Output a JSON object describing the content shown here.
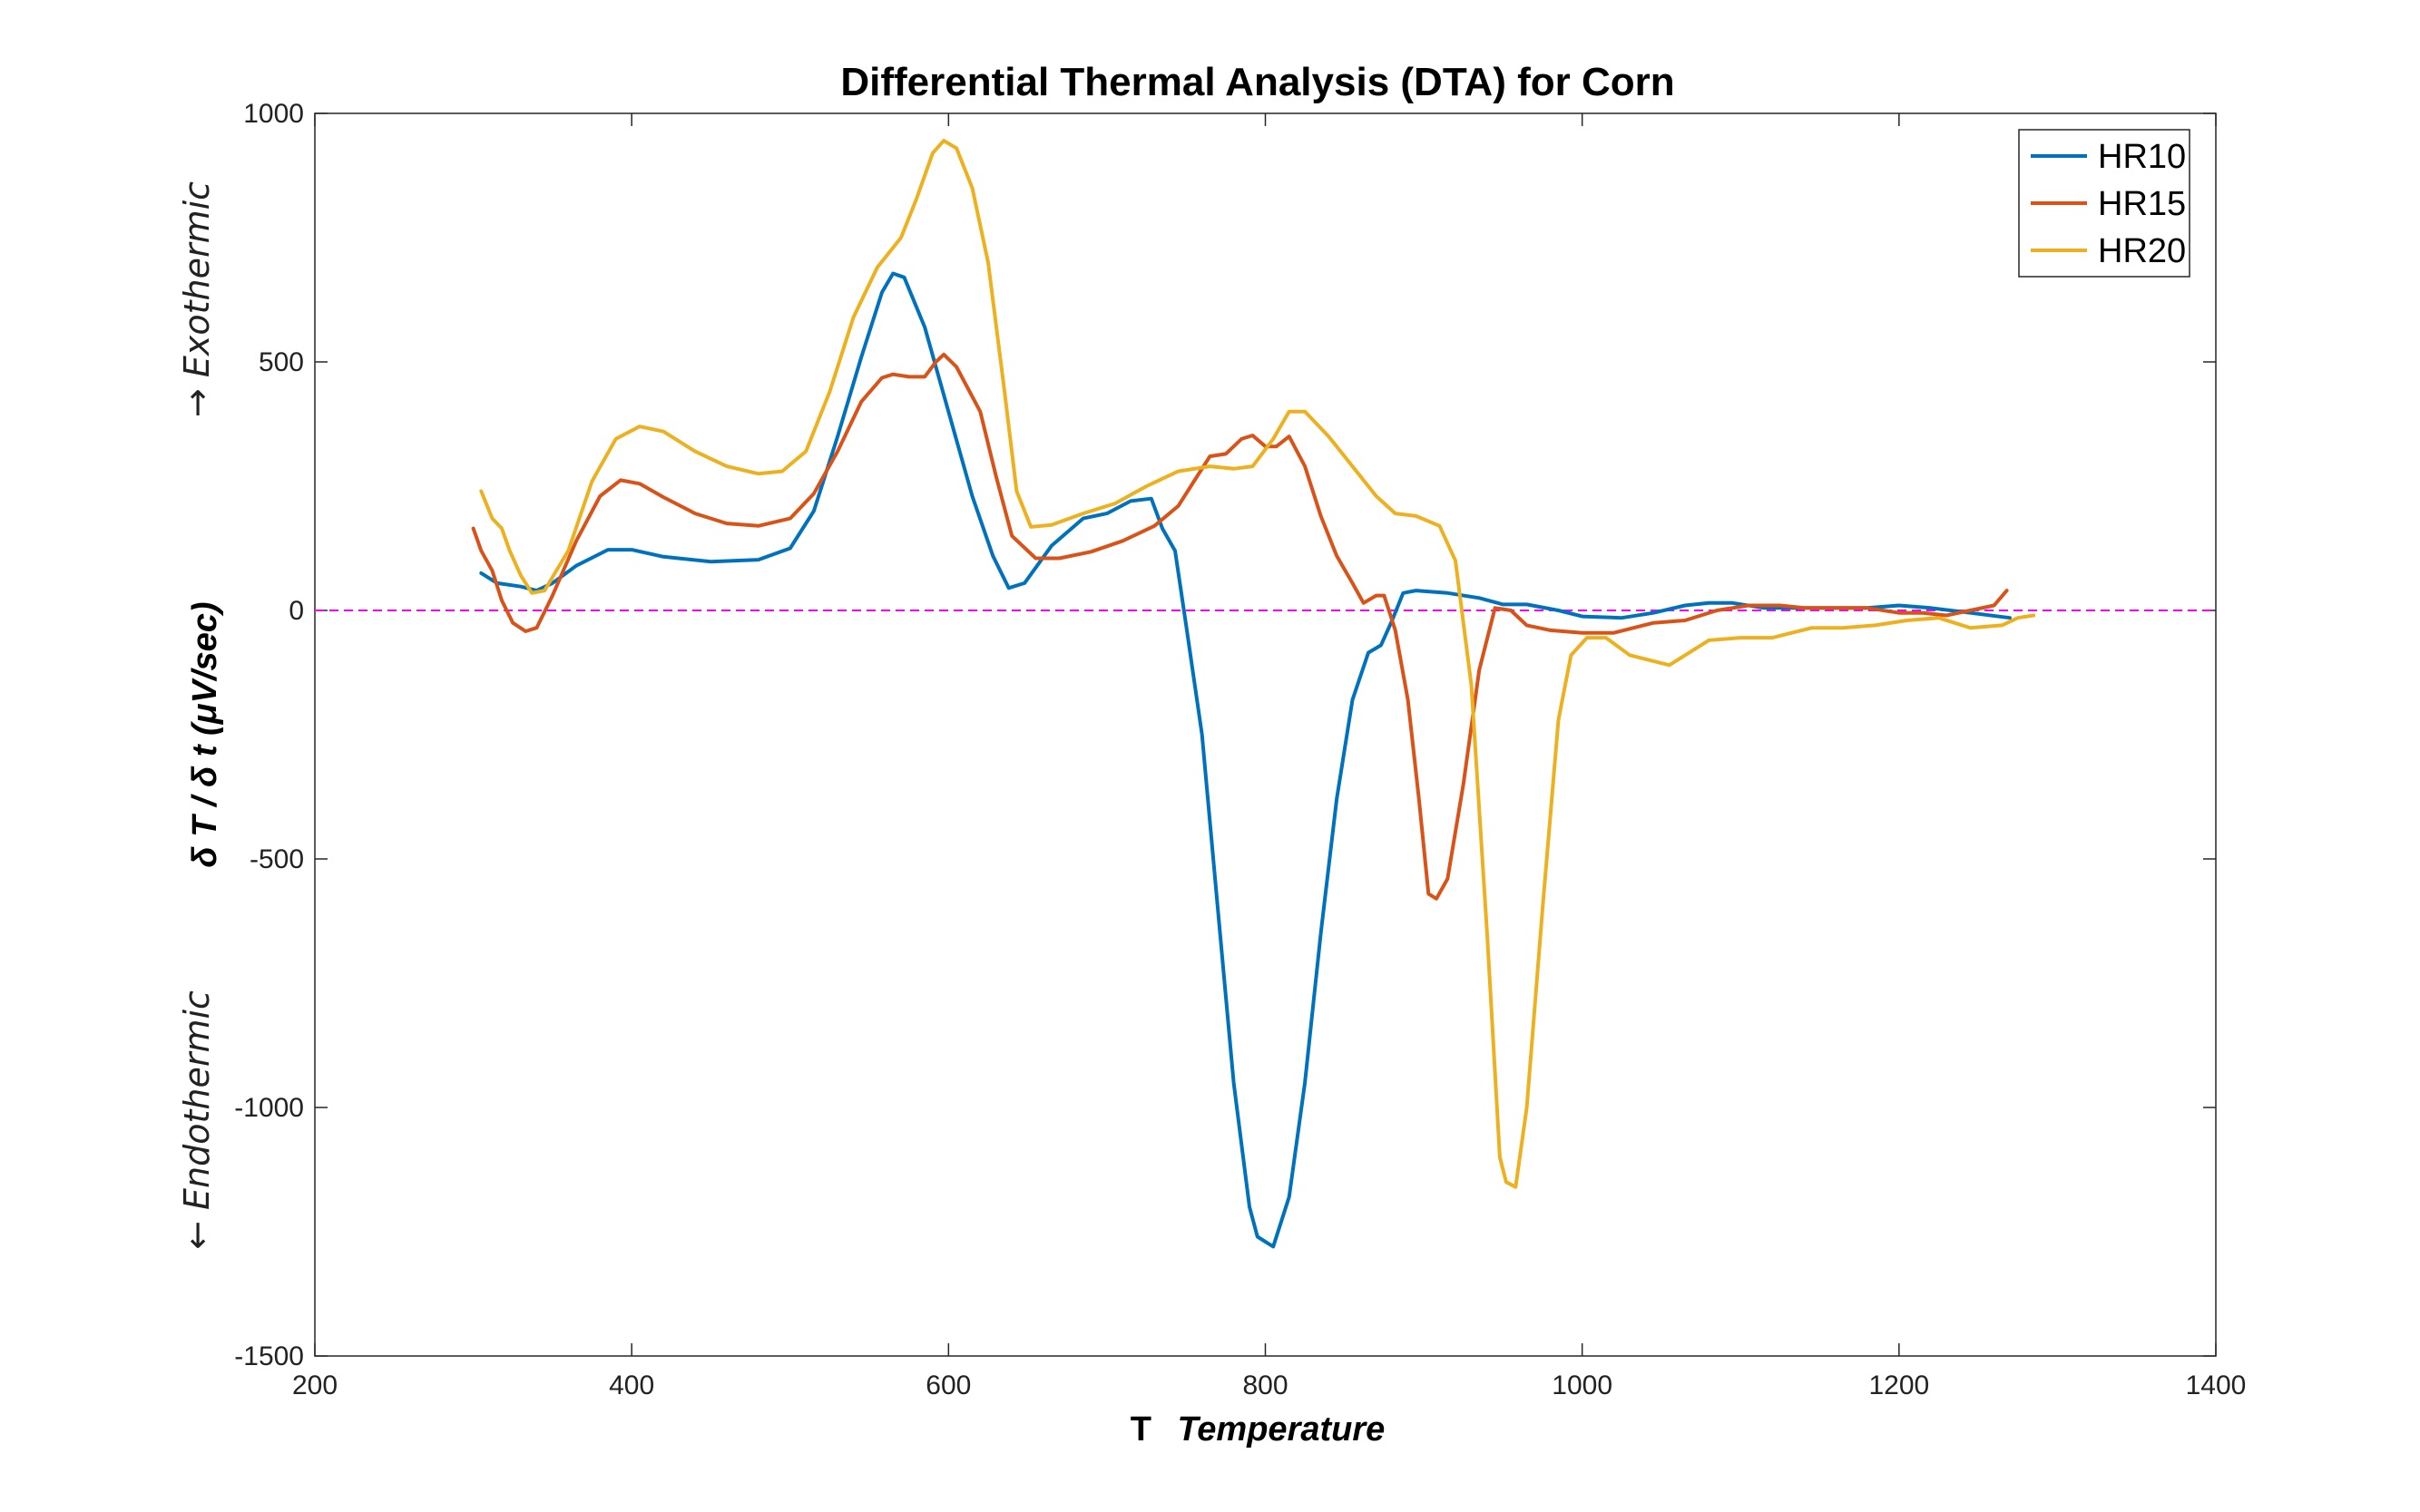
{
  "chart_data": {
    "type": "line",
    "title": "Differential Thermal Analysis (DTA) for Corn",
    "xlabel_symbol": "T",
    "xlabel": "Temperature",
    "ylabel": "δ T / δ t (μV/sec)",
    "ylabel_exo": "→ Exothermic",
    "ylabel_endo": "← Endothermic",
    "xlim": [
      200,
      1400
    ],
    "ylim": [
      -1500,
      1000
    ],
    "xticks": [
      200,
      400,
      600,
      800,
      1000,
      1200,
      1400
    ],
    "yticks": [
      1000,
      500,
      0,
      -500,
      -1000,
      -1500
    ],
    "grid": false,
    "legend_position": "top-right",
    "zero_line_color": "#ff00ff",
    "series": [
      {
        "name": "HR10",
        "color": "#0072BD",
        "points": [
          [
            305,
            75
          ],
          [
            315,
            55
          ],
          [
            330,
            48
          ],
          [
            340,
            40
          ],
          [
            350,
            55
          ],
          [
            365,
            90
          ],
          [
            385,
            122
          ],
          [
            400,
            122
          ],
          [
            420,
            108
          ],
          [
            450,
            98
          ],
          [
            480,
            102
          ],
          [
            500,
            125
          ],
          [
            515,
            200
          ],
          [
            530,
            350
          ],
          [
            545,
            510
          ],
          [
            558,
            640
          ],
          [
            565,
            678
          ],
          [
            572,
            670
          ],
          [
            585,
            570
          ],
          [
            600,
            400
          ],
          [
            615,
            230
          ],
          [
            628,
            110
          ],
          [
            638,
            45
          ],
          [
            648,
            55
          ],
          [
            665,
            130
          ],
          [
            685,
            185
          ],
          [
            700,
            195
          ],
          [
            715,
            220
          ],
          [
            728,
            225
          ],
          [
            735,
            165
          ],
          [
            743,
            120
          ],
          [
            750,
            -30
          ],
          [
            760,
            -250
          ],
          [
            770,
            -600
          ],
          [
            780,
            -950
          ],
          [
            790,
            -1200
          ],
          [
            795,
            -1260
          ],
          [
            800,
            -1270
          ],
          [
            805,
            -1280
          ],
          [
            815,
            -1180
          ],
          [
            825,
            -950
          ],
          [
            835,
            -650
          ],
          [
            845,
            -380
          ],
          [
            855,
            -180
          ],
          [
            865,
            -85
          ],
          [
            873,
            -70
          ],
          [
            880,
            -20
          ],
          [
            887,
            35
          ],
          [
            895,
            40
          ],
          [
            915,
            35
          ],
          [
            935,
            25
          ],
          [
            950,
            12
          ],
          [
            965,
            12
          ],
          [
            985,
            0
          ],
          [
            1000,
            -12
          ],
          [
            1025,
            -15
          ],
          [
            1045,
            -5
          ],
          [
            1065,
            10
          ],
          [
            1080,
            15
          ],
          [
            1095,
            15
          ],
          [
            1115,
            5
          ],
          [
            1140,
            5
          ],
          [
            1160,
            5
          ],
          [
            1180,
            5
          ],
          [
            1200,
            10
          ],
          [
            1220,
            5
          ],
          [
            1245,
            -5
          ],
          [
            1270,
            -15
          ]
        ]
      },
      {
        "name": "HR15",
        "color": "#D95319",
        "points": [
          [
            300,
            165
          ],
          [
            305,
            120
          ],
          [
            312,
            80
          ],
          [
            318,
            20
          ],
          [
            325,
            -25
          ],
          [
            333,
            -42
          ],
          [
            340,
            -35
          ],
          [
            350,
            30
          ],
          [
            365,
            140
          ],
          [
            380,
            230
          ],
          [
            393,
            262
          ],
          [
            405,
            255
          ],
          [
            420,
            228
          ],
          [
            440,
            195
          ],
          [
            460,
            175
          ],
          [
            480,
            170
          ],
          [
            500,
            185
          ],
          [
            515,
            235
          ],
          [
            530,
            320
          ],
          [
            545,
            420
          ],
          [
            558,
            468
          ],
          [
            565,
            475
          ],
          [
            575,
            470
          ],
          [
            585,
            470
          ],
          [
            592,
            500
          ],
          [
            597,
            515
          ],
          [
            605,
            490
          ],
          [
            620,
            400
          ],
          [
            630,
            270
          ],
          [
            640,
            150
          ],
          [
            655,
            105
          ],
          [
            670,
            105
          ],
          [
            690,
            118
          ],
          [
            710,
            140
          ],
          [
            730,
            170
          ],
          [
            745,
            210
          ],
          [
            755,
            260
          ],
          [
            765,
            310
          ],
          [
            775,
            315
          ],
          [
            785,
            345
          ],
          [
            792,
            352
          ],
          [
            800,
            330
          ],
          [
            807,
            330
          ],
          [
            815,
            350
          ],
          [
            825,
            290
          ],
          [
            835,
            190
          ],
          [
            845,
            110
          ],
          [
            855,
            55
          ],
          [
            862,
            15
          ],
          [
            870,
            30
          ],
          [
            875,
            30
          ],
          [
            882,
            -40
          ],
          [
            890,
            -180
          ],
          [
            897,
            -380
          ],
          [
            903,
            -570
          ],
          [
            908,
            -580
          ],
          [
            915,
            -540
          ],
          [
            925,
            -350
          ],
          [
            935,
            -120
          ],
          [
            945,
            5
          ],
          [
            955,
            0
          ],
          [
            965,
            -30
          ],
          [
            980,
            -40
          ],
          [
            1000,
            -45
          ],
          [
            1020,
            -45
          ],
          [
            1045,
            -25
          ],
          [
            1065,
            -20
          ],
          [
            1085,
            0
          ],
          [
            1105,
            10
          ],
          [
            1125,
            10
          ],
          [
            1140,
            5
          ],
          [
            1160,
            5
          ],
          [
            1180,
            5
          ],
          [
            1200,
            -5
          ],
          [
            1215,
            -5
          ],
          [
            1230,
            -10
          ],
          [
            1245,
            0
          ],
          [
            1260,
            10
          ],
          [
            1268,
            40
          ]
        ]
      },
      {
        "name": "HR20",
        "color": "#EDB120",
        "points": [
          [
            305,
            240
          ],
          [
            312,
            185
          ],
          [
            318,
            165
          ],
          [
            323,
            120
          ],
          [
            330,
            70
          ],
          [
            337,
            35
          ],
          [
            345,
            40
          ],
          [
            360,
            120
          ],
          [
            375,
            260
          ],
          [
            390,
            345
          ],
          [
            405,
            370
          ],
          [
            420,
            360
          ],
          [
            440,
            320
          ],
          [
            460,
            290
          ],
          [
            480,
            275
          ],
          [
            495,
            280
          ],
          [
            510,
            320
          ],
          [
            525,
            440
          ],
          [
            540,
            590
          ],
          [
            555,
            690
          ],
          [
            570,
            750
          ],
          [
            580,
            830
          ],
          [
            590,
            920
          ],
          [
            597,
            945
          ],
          [
            605,
            930
          ],
          [
            615,
            850
          ],
          [
            625,
            700
          ],
          [
            635,
            450
          ],
          [
            643,
            240
          ],
          [
            652,
            168
          ],
          [
            665,
            172
          ],
          [
            685,
            195
          ],
          [
            705,
            215
          ],
          [
            725,
            250
          ],
          [
            745,
            280
          ],
          [
            765,
            290
          ],
          [
            780,
            285
          ],
          [
            792,
            290
          ],
          [
            805,
            345
          ],
          [
            815,
            400
          ],
          [
            825,
            400
          ],
          [
            840,
            350
          ],
          [
            855,
            290
          ],
          [
            870,
            230
          ],
          [
            882,
            195
          ],
          [
            895,
            190
          ],
          [
            910,
            170
          ],
          [
            920,
            100
          ],
          [
            930,
            -150
          ],
          [
            940,
            -650
          ],
          [
            948,
            -1100
          ],
          [
            952,
            -1150
          ],
          [
            958,
            -1160
          ],
          [
            965,
            -1000
          ],
          [
            975,
            -600
          ],
          [
            985,
            -220
          ],
          [
            993,
            -90
          ],
          [
            1003,
            -55
          ],
          [
            1015,
            -55
          ],
          [
            1030,
            -90
          ],
          [
            1055,
            -110
          ],
          [
            1080,
            -60
          ],
          [
            1100,
            -55
          ],
          [
            1120,
            -55
          ],
          [
            1145,
            -35
          ],
          [
            1165,
            -35
          ],
          [
            1185,
            -30
          ],
          [
            1205,
            -20
          ],
          [
            1225,
            -15
          ],
          [
            1245,
            -35
          ],
          [
            1265,
            -30
          ],
          [
            1275,
            -15
          ],
          [
            1285,
            -10
          ]
        ]
      }
    ]
  }
}
